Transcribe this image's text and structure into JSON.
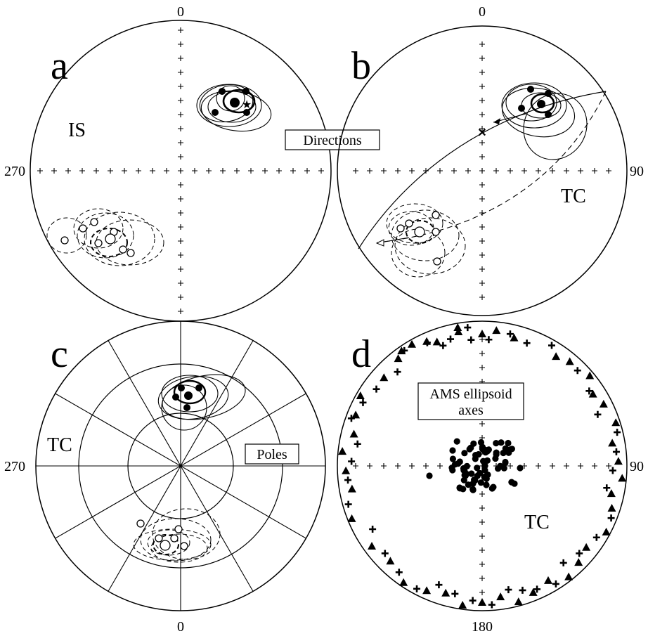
{
  "panels": [
    {
      "letter": "a",
      "frame": "IS"
    },
    {
      "letter": "b",
      "frame": "TC"
    },
    {
      "letter": "c",
      "frame": "TC"
    },
    {
      "letter": "d",
      "frame": "TC"
    }
  ],
  "degrees": {
    "north_a": "0",
    "north_b": "0",
    "west_a": "270",
    "east_b": "90",
    "west_c": "270",
    "south_c": "0",
    "east_d": "90",
    "south_d": "180"
  },
  "labels": {
    "directions": "Directions",
    "poles": "Poles",
    "ams_line1": "AMS ellipsoid",
    "ams_line2": "axes"
  }
}
